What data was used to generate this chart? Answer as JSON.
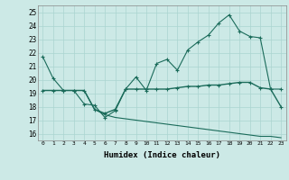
{
  "xlabel": "Humidex (Indice chaleur)",
  "xlim": [
    -0.5,
    23.5
  ],
  "ylim": [
    15.5,
    25.5
  ],
  "yticks": [
    16,
    17,
    18,
    19,
    20,
    21,
    22,
    23,
    24,
    25
  ],
  "xticks": [
    0,
    1,
    2,
    3,
    4,
    5,
    6,
    7,
    8,
    9,
    10,
    11,
    12,
    13,
    14,
    15,
    16,
    17,
    18,
    19,
    20,
    21,
    22,
    23
  ],
  "background_color": "#cce9e6",
  "grid_color": "#aad4d0",
  "line_color": "#1a6b5a",
  "line1_y": [
    21.7,
    20.1,
    19.2,
    19.2,
    18.2,
    18.1,
    17.2,
    17.7,
    19.3,
    20.2,
    19.2,
    21.2,
    21.5,
    20.7,
    22.2,
    22.8,
    23.3,
    24.2,
    24.8,
    23.6,
    23.2,
    23.1,
    19.3,
    19.3
  ],
  "line2_y": [
    19.2,
    19.2,
    19.2,
    19.2,
    19.2,
    17.8,
    17.5,
    17.8,
    19.3,
    19.3,
    19.3,
    19.3,
    19.3,
    19.4,
    19.5,
    19.5,
    19.6,
    19.6,
    19.7,
    19.8,
    19.8,
    19.4,
    19.3,
    18.0
  ],
  "line3_y": [
    19.2,
    19.2,
    19.2,
    19.2,
    19.2,
    17.8,
    17.4,
    17.2,
    17.1,
    17.0,
    16.9,
    16.8,
    16.7,
    16.6,
    16.5,
    16.4,
    16.3,
    16.2,
    16.1,
    16.0,
    15.9,
    15.8,
    15.8,
    15.7
  ]
}
